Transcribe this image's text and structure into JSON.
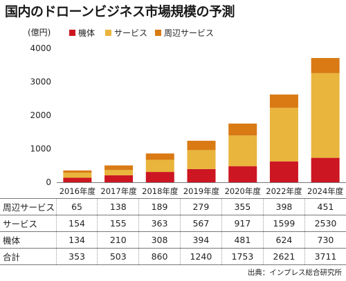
{
  "title": "国内のドローンビジネス市場規模の予測",
  "source": "出典：インプレス総合研究所",
  "colors": {
    "hardware": "#cc1622",
    "service": "#e9b53c",
    "peripheral": "#d97a14"
  },
  "chart_data": {
    "type": "bar",
    "stacked": true,
    "title": "国内のドローンビジネス市場規模の予測",
    "ylabel": "(億円)",
    "ylim": [
      0,
      4000
    ],
    "yticks": [
      0,
      1000,
      2000,
      3000,
      4000
    ],
    "grid": false,
    "legend": "top-left",
    "categories": [
      "2016年度",
      "2017年度",
      "2018年度",
      "2019年度",
      "2020年度",
      "2022年度",
      "2024年度"
    ],
    "series": [
      {
        "name": "機体",
        "values": [
          134,
          210,
          308,
          394,
          481,
          624,
          730
        ]
      },
      {
        "name": "サービス",
        "values": [
          154,
          155,
          363,
          567,
          917,
          1599,
          2530
        ]
      },
      {
        "name": "周辺サービス",
        "values": [
          65,
          138,
          189,
          279,
          355,
          398,
          451
        ]
      }
    ]
  },
  "table": {
    "rows": [
      {
        "label": "周辺サービス",
        "values": [
          "65",
          "138",
          "189",
          "279",
          "355",
          "398",
          "451"
        ]
      },
      {
        "label": "サービス",
        "values": [
          "154",
          "155",
          "363",
          "567",
          "917",
          "1599",
          "2530"
        ]
      },
      {
        "label": "機体",
        "values": [
          "134",
          "210",
          "308",
          "394",
          "481",
          "624",
          "730"
        ]
      },
      {
        "label": "合計",
        "values": [
          "353",
          "503",
          "860",
          "1240",
          "1753",
          "2621",
          "3711"
        ]
      }
    ]
  }
}
